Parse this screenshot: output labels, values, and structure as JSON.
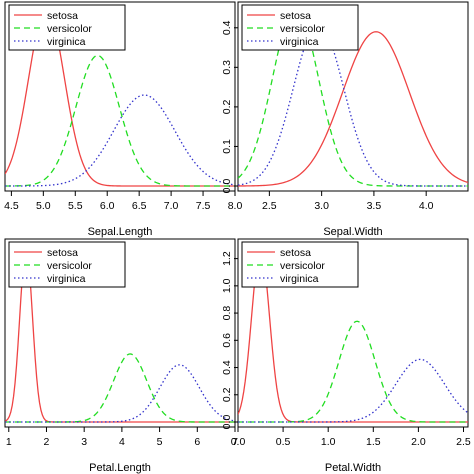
{
  "chart_data": [
    {
      "type": "line",
      "xlabel": "Sepal.Length",
      "xlim": [
        4.4,
        8.0
      ],
      "ylim": [
        0,
        0.45
      ],
      "xticks": [
        4.5,
        5.0,
        5.5,
        6.0,
        6.5,
        7.0,
        7.5,
        8.0
      ],
      "xtick_labels": [
        "4.5",
        "5.0",
        "5.5",
        "6.0",
        "6.5",
        "7.0",
        "7.5",
        "8.0"
      ],
      "yticks": [],
      "ytick_labels": [],
      "legend_position": "top-left",
      "grid": false,
      "series": [
        {
          "name": "setosa",
          "color": "#ef4444",
          "dash": "solid",
          "mean": 5.05,
          "sd": 0.28,
          "peak": 0.45
        },
        {
          "name": "versicolor",
          "color": "#22dd22",
          "dash": "dashed",
          "mean": 5.85,
          "sd": 0.34,
          "peak": 0.33
        },
        {
          "name": "virginica",
          "color": "#3333cc",
          "dash": "dotted",
          "mean": 6.58,
          "sd": 0.48,
          "peak": 0.23
        }
      ]
    },
    {
      "type": "line",
      "xlabel": "Sepal.Width",
      "xlim": [
        2.2,
        4.4
      ],
      "ylim": [
        0,
        0.45
      ],
      "xticks": [
        2.5,
        3.0,
        3.5,
        4.0
      ],
      "xtick_labels": [
        "2.5",
        "3.0",
        "3.5",
        "4.0"
      ],
      "yticks": [
        0.0,
        0.1,
        0.2,
        0.3,
        0.4
      ],
      "ytick_labels": [
        "0.0",
        "0.1",
        "0.2",
        "0.3",
        "0.4"
      ],
      "legend_position": "top-left",
      "grid": false,
      "series": [
        {
          "name": "setosa",
          "color": "#ef4444",
          "dash": "solid",
          "mean": 3.52,
          "sd": 0.32,
          "peak": 0.39
        },
        {
          "name": "versicolor",
          "color": "#22dd22",
          "dash": "dashed",
          "mean": 2.75,
          "sd": 0.22,
          "peak": 0.45
        },
        {
          "name": "virginica",
          "color": "#3333cc",
          "dash": "dotted",
          "mean": 2.97,
          "sd": 0.24,
          "peak": 0.41
        }
      ]
    },
    {
      "type": "line",
      "xlabel": "Petal.Length",
      "xlim": [
        0.9,
        7.0
      ],
      "ylim": [
        0,
        1.3
      ],
      "xticks": [
        1,
        2,
        3,
        4,
        5,
        6,
        7
      ],
      "xtick_labels": [
        "1",
        "2",
        "3",
        "4",
        "5",
        "6",
        "7"
      ],
      "yticks": [],
      "ytick_labels": [],
      "legend_position": "top-left",
      "grid": false,
      "series": [
        {
          "name": "setosa",
          "color": "#ef4444",
          "dash": "solid",
          "mean": 1.46,
          "sd": 0.17,
          "peak": 1.27
        },
        {
          "name": "versicolor",
          "color": "#22dd22",
          "dash": "dashed",
          "mean": 4.22,
          "sd": 0.44,
          "peak": 0.5
        },
        {
          "name": "virginica",
          "color": "#3333cc",
          "dash": "dotted",
          "mean": 5.53,
          "sd": 0.52,
          "peak": 0.42
        }
      ]
    },
    {
      "type": "line",
      "xlabel": "Petal.Width",
      "xlim": [
        0.0,
        2.55
      ],
      "ylim": [
        0,
        1.3
      ],
      "xticks": [
        0.0,
        0.5,
        1.0,
        1.5,
        2.0,
        2.5
      ],
      "xtick_labels": [
        "0.0",
        "0.5",
        "1.0",
        "1.5",
        "2.0",
        "2.5"
      ],
      "yticks": [
        0.0,
        0.2,
        0.4,
        0.6,
        0.8,
        1.0,
        1.2
      ],
      "ytick_labels": [
        "0.0",
        "0.2",
        "0.4",
        "0.6",
        "0.8",
        "1.0",
        "1.2"
      ],
      "legend_position": "top-left",
      "grid": false,
      "series": [
        {
          "name": "setosa",
          "color": "#ef4444",
          "dash": "solid",
          "mean": 0.25,
          "sd": 0.1,
          "peak": 1.27
        },
        {
          "name": "versicolor",
          "color": "#22dd22",
          "dash": "dashed",
          "mean": 1.32,
          "sd": 0.2,
          "peak": 0.74
        },
        {
          "name": "virginica",
          "color": "#3333cc",
          "dash": "dotted",
          "mean": 2.02,
          "sd": 0.27,
          "peak": 0.46
        }
      ]
    }
  ]
}
